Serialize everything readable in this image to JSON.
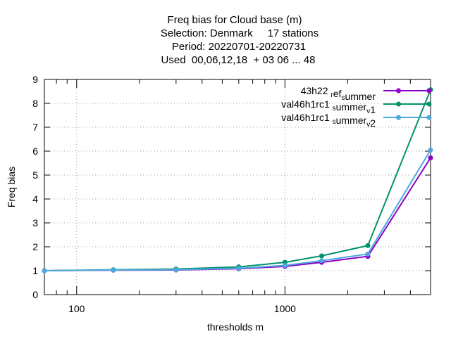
{
  "chart_data": {
    "type": "line",
    "title_lines": [
      "Freq bias  for Cloud base (m)",
      "Selection: Denmark     17 stations",
      "Period: 20220701-20220731",
      "Used  00,06,12,18  + 03 06 ... 48"
    ],
    "xlabel": "thresholds m",
    "ylabel": "Freq bias",
    "xscale": "log",
    "xlim": [
      70,
      5000
    ],
    "ylim": [
      0,
      9
    ],
    "x_tick_labels": [
      "100",
      "1000"
    ],
    "y_tick_labels": [
      "0",
      "1",
      "2",
      "3",
      "4",
      "5",
      "6",
      "7",
      "8",
      "9"
    ],
    "grid": true,
    "legend_position": "top-right",
    "x": [
      70,
      150,
      300,
      600,
      1000,
      1500,
      2500,
      5000
    ],
    "series": [
      {
        "name": "43h22_ref_summer",
        "legend_parts": [
          [
            "43h22 ",
            ""
          ],
          [
            "r",
            "sub"
          ],
          [
            "ef",
            ""
          ],
          [
            "s",
            "sub"
          ],
          [
            "ummer",
            ""
          ]
        ],
        "color": "#8b00c9",
        "marker": "circle",
        "values": [
          1.0,
          1.02,
          1.03,
          1.08,
          1.18,
          1.35,
          1.6,
          5.72
        ]
      },
      {
        "name": "val46h1rc1_summer_v1",
        "legend_parts": [
          [
            "val46h1rc1 ",
            ""
          ],
          [
            "s",
            "sub"
          ],
          [
            "ummer",
            ""
          ],
          [
            "v",
            "sub"
          ],
          [
            "1",
            ""
          ]
        ],
        "color": "#00936b",
        "marker": "circle",
        "values": [
          1.0,
          1.04,
          1.07,
          1.16,
          1.35,
          1.62,
          2.05,
          8.57
        ]
      },
      {
        "name": "val46h1rc1_summer_v2",
        "legend_parts": [
          [
            "val46h1rc1 ",
            ""
          ],
          [
            "s",
            "sub"
          ],
          [
            "ummer",
            ""
          ],
          [
            "v",
            "sub"
          ],
          [
            "2",
            ""
          ]
        ],
        "color": "#4fa8dc",
        "marker": "circle",
        "values": [
          1.0,
          1.03,
          1.04,
          1.1,
          1.22,
          1.42,
          1.7,
          6.05
        ]
      }
    ]
  }
}
